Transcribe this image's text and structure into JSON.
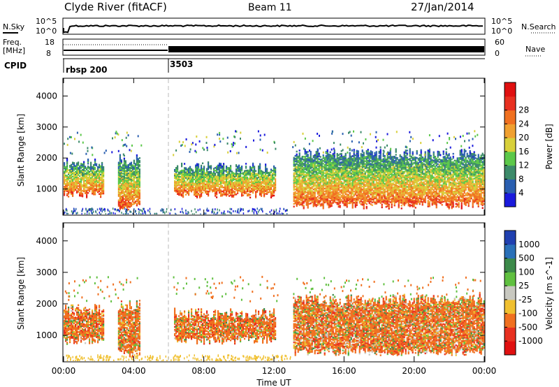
{
  "header": {
    "station": "Clyde River (fitACF)",
    "beam": "Beam 11",
    "date": "27/Jan/2014"
  },
  "side_labels": {
    "nsky": "N.Sky",
    "nsearch": "N.Search",
    "freq": "Freq.",
    "freq_unit": "[MHz]",
    "nave": "Nave",
    "cpid": "CPID"
  },
  "strip_ticks": {
    "nsky_left": [
      "10^5",
      "10^0"
    ],
    "nsky_right": [
      "10^5",
      "10^0"
    ],
    "freq_left": [
      "18",
      "8"
    ],
    "nave_right": [
      "60",
      "0"
    ]
  },
  "cpid_labels": [
    "rbsp 200",
    "3503"
  ],
  "chart_data": [
    {
      "type": "heatmap",
      "name": "power-panel",
      "ylabel": "Slant Range [km]",
      "xlabel": "",
      "x_ticks": [
        "00:00",
        "04:00",
        "08:00",
        "12:00",
        "16:00",
        "20:00",
        "00:00"
      ],
      "x_range_hours": [
        0,
        24
      ],
      "y_ticks": [
        1000,
        2000,
        3000,
        4000
      ],
      "ylim": [
        180,
        4550
      ],
      "colorbar": {
        "label": "Power [dB]",
        "ticks": [
          "4",
          "8",
          "12",
          "16",
          "20",
          "24",
          "28"
        ],
        "colors": [
          "#1a1adc",
          "#2a5fb0",
          "#3c8a6a",
          "#5cc84a",
          "#d8d03a",
          "#f0a030",
          "#f07020",
          "#e83020",
          "#e01010"
        ]
      },
      "echo_regions": [
        {
          "t": [
            0.0,
            2.3
          ],
          "range_km": [
            700,
            2000
          ],
          "power_db": 24
        },
        {
          "t": [
            3.1,
            4.3
          ],
          "range_km": [
            300,
            2100
          ],
          "power_db": 14
        },
        {
          "t": [
            6.3,
            12.1
          ],
          "range_km": [
            700,
            1850
          ],
          "power_db": 22
        },
        {
          "t": [
            13.1,
            24.0
          ],
          "range_km": [
            350,
            2300
          ],
          "power_db": 26
        }
      ]
    },
    {
      "type": "heatmap",
      "name": "velocity-panel",
      "ylabel": "Slant Range [km]",
      "xlabel": "Time UT",
      "x_ticks": [
        "00:00",
        "04:00",
        "08:00",
        "12:00",
        "16:00",
        "20:00",
        "00:00"
      ],
      "x_range_hours": [
        0,
        24
      ],
      "y_ticks": [
        1000,
        2000,
        3000,
        4000
      ],
      "ylim": [
        180,
        4550
      ],
      "colorbar": {
        "label": "Velocity [m s^-1]",
        "ticks": [
          "1000",
          "500",
          "100",
          "25",
          "-25",
          "-100",
          "-500",
          "-1000"
        ],
        "colors": [
          "#2040b0",
          "#2a70b8",
          "#3c8a4a",
          "#60c040",
          "#c8c8c0",
          "#f0c030",
          "#f07020",
          "#e83020",
          "#e01010"
        ]
      },
      "echo_regions": [
        {
          "t": [
            0.0,
            2.3
          ],
          "range_km": [
            700,
            2000
          ],
          "velocity_ms": -200
        },
        {
          "t": [
            3.1,
            4.3
          ],
          "range_km": [
            300,
            2100
          ],
          "velocity_ms": 50
        },
        {
          "t": [
            6.3,
            12.1
          ],
          "range_km": [
            700,
            1850
          ],
          "velocity_ms": -250
        },
        {
          "t": [
            13.1,
            24.0
          ],
          "range_km": [
            350,
            2300
          ],
          "velocity_ms": -150
        }
      ]
    }
  ]
}
